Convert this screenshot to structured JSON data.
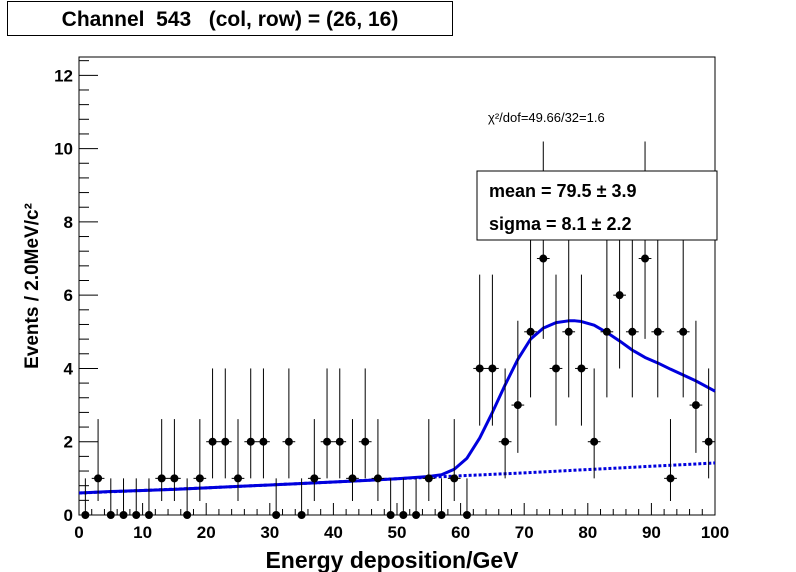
{
  "title": "Channel  543   (col, row) = (26, 16)",
  "chi2_text": "χ²/dof=49.66/32=1.6",
  "stats": {
    "mean": "mean =  79.5 ± 3.9",
    "sigma": "sigma =  8.1 ± 2.2"
  },
  "colors": {
    "fit": "#0000dd",
    "data": "#000000"
  },
  "chart_data": {
    "type": "scatter",
    "xlabel": "Energy deposition/GeV",
    "ylabel": "Events / 2.0MeV/c²",
    "xlim": [
      0,
      100
    ],
    "ylim": [
      0,
      12.5
    ],
    "x_ticks": [
      0,
      10,
      20,
      30,
      40,
      50,
      60,
      70,
      80,
      90,
      100
    ],
    "y_ticks": [
      0,
      2,
      4,
      6,
      8,
      10,
      12
    ],
    "bin_width": 2,
    "series": [
      {
        "x": [
          1,
          3,
          5,
          7,
          9,
          11,
          13,
          15,
          17,
          19,
          21,
          23,
          25,
          27,
          29,
          31,
          33,
          35,
          37,
          39,
          41,
          43,
          45,
          47,
          49,
          51,
          53,
          55,
          57,
          59,
          61,
          63,
          65,
          67,
          69,
          71,
          73,
          75,
          77,
          79,
          81,
          83,
          85,
          87,
          89,
          91,
          93,
          95,
          97,
          99
        ],
        "y": [
          0,
          1,
          0,
          0,
          0,
          0,
          1,
          1,
          0,
          1,
          2,
          2,
          1,
          2,
          2,
          0,
          2,
          0,
          1,
          2,
          2,
          1,
          2,
          1,
          0,
          0,
          0,
          1,
          0,
          1,
          0,
          4,
          4,
          2,
          3,
          5,
          7,
          4,
          5,
          4,
          2,
          5,
          6,
          5,
          7,
          5,
          1,
          5,
          3,
          2
        ]
      }
    ],
    "fit_total": {
      "x": [
        0,
        5,
        10,
        15,
        20,
        25,
        30,
        35,
        40,
        45,
        50,
        55,
        57,
        59,
        61,
        63,
        65,
        67,
        69,
        71,
        73,
        75,
        77,
        78,
        79,
        81,
        83,
        85,
        87,
        89,
        91,
        93,
        95,
        97,
        100
      ],
      "y": [
        0.6,
        0.64,
        0.67,
        0.7,
        0.74,
        0.78,
        0.82,
        0.86,
        0.9,
        0.94,
        0.99,
        1.05,
        1.1,
        1.25,
        1.55,
        2.1,
        2.8,
        3.55,
        4.25,
        4.8,
        5.1,
        5.25,
        5.3,
        5.3,
        5.28,
        5.18,
        4.98,
        4.75,
        4.5,
        4.3,
        4.15,
        3.98,
        3.82,
        3.66,
        3.38
      ]
    },
    "fit_background": {
      "x": [
        0,
        10,
        20,
        30,
        40,
        50,
        60,
        70,
        80,
        90,
        100
      ],
      "y": [
        0.6,
        0.67,
        0.74,
        0.82,
        0.9,
        0.99,
        1.07,
        1.15,
        1.24,
        1.33,
        1.42
      ]
    }
  }
}
